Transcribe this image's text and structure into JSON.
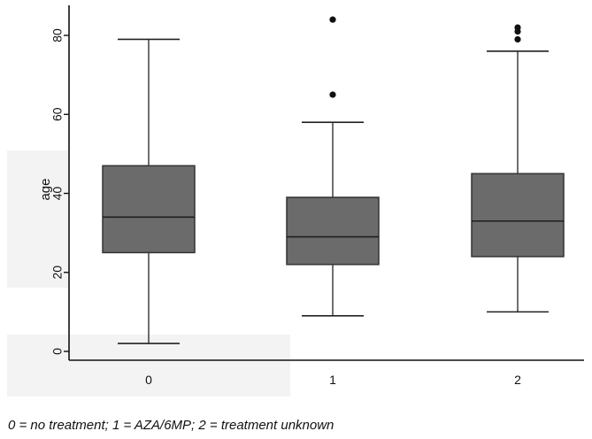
{
  "chart_data": {
    "type": "box",
    "xlabel": "",
    "ylabel": "age",
    "ylim": [
      0,
      88
    ],
    "yticks": [
      0,
      20,
      40,
      60,
      80
    ],
    "categories": [
      "0",
      "1",
      "2"
    ],
    "boxes": [
      {
        "category": "0",
        "whisker_low": 2,
        "q1": 25,
        "median": 34,
        "q3": 47,
        "whisker_high": 79,
        "outliers": []
      },
      {
        "category": "1",
        "whisker_low": 9,
        "q1": 22,
        "median": 29,
        "q3": 39,
        "whisker_high": 58,
        "outliers": [
          65,
          84
        ]
      },
      {
        "category": "2",
        "whisker_low": 10,
        "q1": 24,
        "median": 33,
        "q3": 45,
        "whisker_high": 76,
        "outliers": [
          79,
          81,
          82
        ]
      }
    ],
    "box_color": "#6b6b6b",
    "grid": false
  },
  "caption": "0 = no treatment; 1 = AZA/6MP; 2 = treatment unknown"
}
